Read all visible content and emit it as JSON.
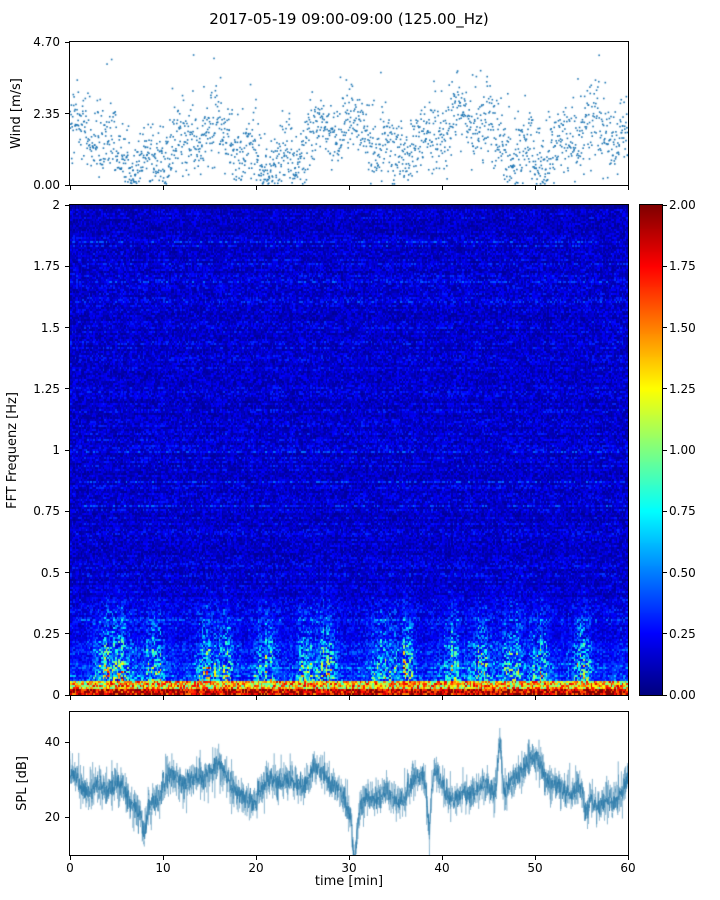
{
  "figure": {
    "title": "2017-05-19 09:00-09:00 (125.00_Hz)",
    "xlabel": "time [min]",
    "background_color": "#ffffff"
  },
  "chart_data": [
    {
      "id": "wind",
      "type": "scatter",
      "ylabel": "Wind [m/s]",
      "xlim": [
        0,
        60
      ],
      "ylim": [
        0.0,
        4.7
      ],
      "yticks": [
        "0.00",
        "2.35",
        "4.70"
      ],
      "ytick_values": [
        0.0,
        2.35,
        4.7
      ],
      "marker_color": "#2077b4",
      "marker_size": 1.6,
      "n_points": 1900,
      "seed": 42,
      "mean": 1.4,
      "std": 0.75,
      "description": "Wind speed scatter: dense cloud between ~0.3 and 2.8 m/s with intermittent gusts reaching ~4.5 m/s"
    },
    {
      "id": "spectrogram",
      "type": "heatmap",
      "ylabel": "FFT Frequenz [Hz]",
      "xlim": [
        0,
        60
      ],
      "ylim": [
        0,
        2
      ],
      "yticks": [
        "0",
        "0.25",
        "0.5",
        "0.75",
        "1",
        "1.25",
        "1.5",
        "1.75",
        "2"
      ],
      "ytick_values": [
        0,
        0.25,
        0.5,
        0.75,
        1,
        1.25,
        1.5,
        1.75,
        2
      ],
      "colormap": "jet",
      "vmin": 0.0,
      "vmax": 2.0,
      "seed": 7,
      "grid": {
        "nt": 360,
        "nf": 245
      },
      "burst_times": [
        3.5,
        5.5,
        9,
        14.5,
        16.5,
        21,
        25.5,
        27.5,
        33.5,
        36,
        41,
        44,
        47.5,
        50.5,
        55
      ],
      "description": "Mostly dark/medium blue (values ~0.1-0.35) across 0-2 Hz; energy concentrated below ~0.4 Hz with intermittent cyan/green/yellow bursts; persistent orange/red band near 0 Hz"
    },
    {
      "id": "spl",
      "type": "line",
      "ylabel": "SPL [dB]",
      "xlim": [
        0,
        60
      ],
      "ylim": [
        10,
        48
      ],
      "yticks": [
        "20",
        "40"
      ],
      "ytick_values": [
        20,
        40
      ],
      "xticks": [
        "0",
        "10",
        "20",
        "30",
        "40",
        "50",
        "60"
      ],
      "xtick_values": [
        0,
        10,
        20,
        30,
        40,
        50,
        60
      ],
      "line_color": "#2878a8",
      "seed": 11,
      "base_level": 28,
      "noise_amp": 2.6,
      "spikes": [
        {
          "t": 8.0,
          "amp": -7
        },
        {
          "t": 30.6,
          "amp": -13
        },
        {
          "t": 38.6,
          "amp": -14
        },
        {
          "t": 46.2,
          "amp": 14
        },
        {
          "t": 55.5,
          "amp": -7
        }
      ],
      "description": "Noisy SPL trace fluctuating mostly 22-37 dB with sharp dips near 30 and 39 min and a peak ~45 dB near 46 min"
    }
  ],
  "colorbar": {
    "colormap": "jet",
    "vmin": 0.0,
    "vmax": 2.0,
    "ticks": [
      "0.00",
      "0.25",
      "0.50",
      "0.75",
      "1.00",
      "1.25",
      "1.50",
      "1.75",
      "2.00"
    ],
    "tick_values": [
      0,
      0.25,
      0.5,
      0.75,
      1.0,
      1.25,
      1.5,
      1.75,
      2.0
    ]
  }
}
